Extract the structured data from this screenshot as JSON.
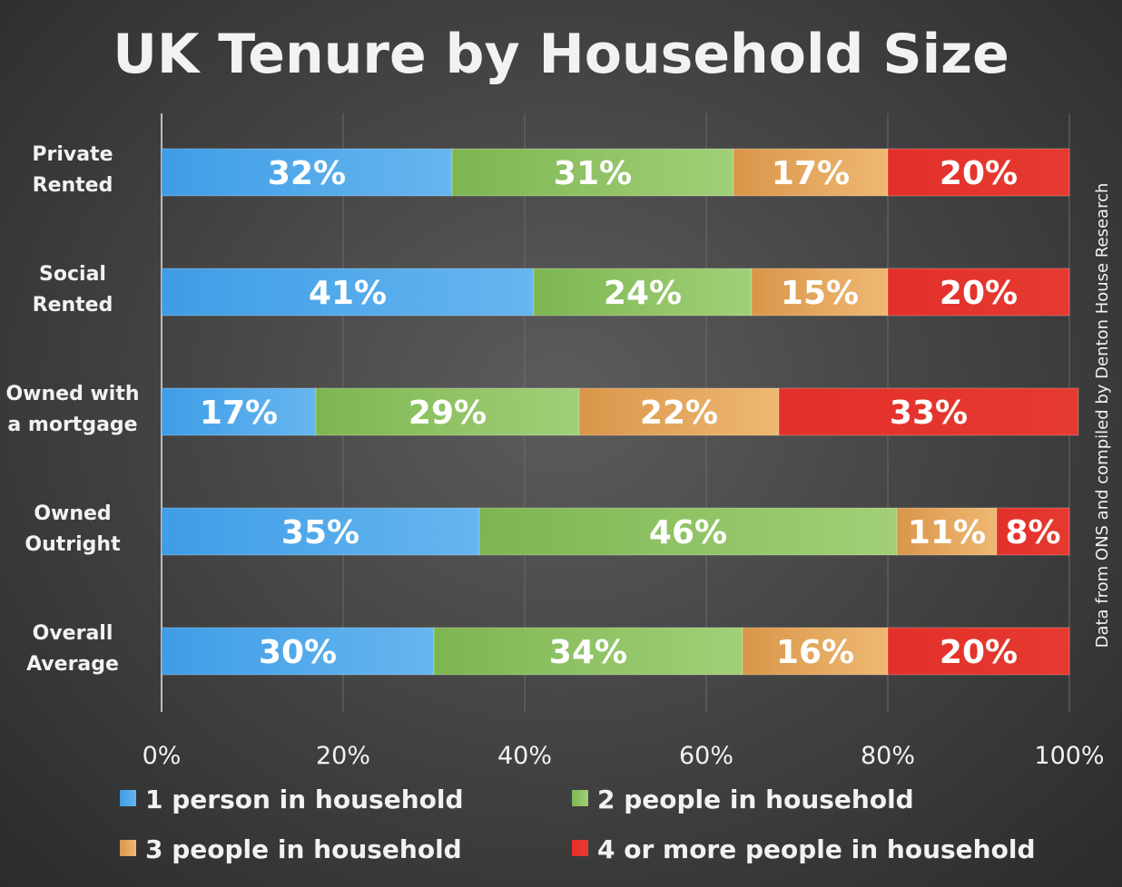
{
  "chart_data": {
    "type": "bar",
    "orientation": "horizontal",
    "stacked": "percent",
    "title": "UK Tenure by Household Size",
    "source_note": "Data from ONS and compiled by Denton House Research",
    "categories": [
      [
        "Private",
        "Rented"
      ],
      [
        "Social",
        "Rented"
      ],
      [
        "Owned with",
        "a mortgage"
      ],
      [
        "Owned",
        "Outright"
      ],
      [
        "Overall",
        "Average"
      ]
    ],
    "series": [
      {
        "name": "1 person in household",
        "values": [
          32,
          41,
          17,
          35,
          30
        ],
        "color": "#4aa3e6"
      },
      {
        "name": "2 people in household",
        "values": [
          31,
          24,
          29,
          46,
          34
        ],
        "color": "#86c05a"
      },
      {
        "name": "3 people in household",
        "values": [
          17,
          15,
          22,
          11,
          16
        ],
        "color": "#e1a158"
      },
      {
        "name": "4 or more people in household",
        "values": [
          20,
          20,
          33,
          8,
          20
        ],
        "color": "#e3322a"
      }
    ],
    "xlim": [
      0,
      100
    ],
    "x_ticks": [
      "0%",
      "20%",
      "40%",
      "60%",
      "80%",
      "100%"
    ],
    "value_suffix": "%",
    "grid": true,
    "legend_position": "bottom"
  }
}
